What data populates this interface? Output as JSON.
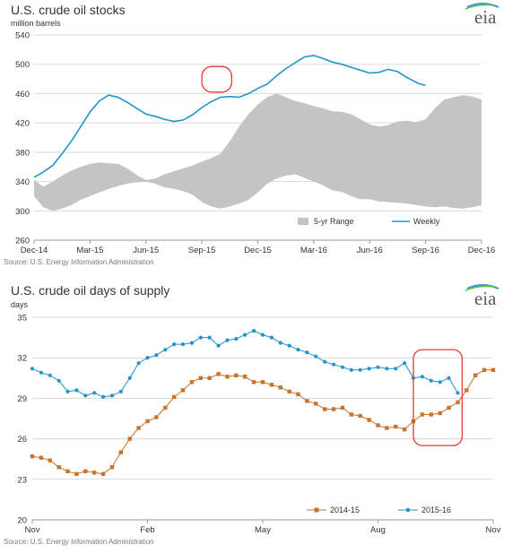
{
  "chart_data": [
    {
      "type": "line",
      "title": "U.S. crude oil stocks",
      "ylabel": "million barrels",
      "ylim": [
        260,
        540
      ],
      "y_ticks": [
        260,
        300,
        340,
        380,
        420,
        460,
        500,
        540
      ],
      "x_tick_labels": [
        "Dec-14",
        "Mar-15",
        "Jun-15",
        "Sep-15",
        "Dec-15",
        "Mar-16",
        "Jun-16",
        "Sep-16",
        "Dec-16"
      ],
      "x_domain": [
        0,
        24
      ],
      "grid": true,
      "legend_position": "bottom-right",
      "source": "Source: U.S. Energy Information Administration",
      "logo_text": "eia",
      "colors": {
        "range": "#c4c4c4",
        "weekly": "#1f95c9",
        "highlight": "#e53935"
      },
      "highlight_range": [
        9.0,
        10.6
      ],
      "series": [
        {
          "name": "5-yr Range",
          "kind": "band",
          "x": [
            0,
            0.5,
            1,
            1.5,
            2,
            2.5,
            3,
            3.5,
            4,
            4.5,
            5,
            5.5,
            6,
            6.5,
            7,
            7.5,
            8,
            8.5,
            9,
            9.5,
            10,
            10.5,
            11,
            11.5,
            12,
            12.5,
            13,
            13.5,
            14,
            14.5,
            15,
            15.5,
            16,
            16.5,
            17,
            17.5,
            18,
            18.5,
            19,
            19.5,
            20,
            20.5,
            21,
            21.5,
            22,
            22.5,
            23,
            23.5,
            24
          ],
          "high": [
            342,
            333,
            340,
            348,
            355,
            360,
            364,
            366,
            365,
            364,
            358,
            349,
            342,
            344,
            350,
            354,
            358,
            362,
            367,
            372,
            378,
            395,
            415,
            432,
            445,
            455,
            460,
            455,
            450,
            447,
            443,
            440,
            436,
            435,
            432,
            425,
            418,
            415,
            417,
            422,
            423,
            421,
            425,
            440,
            452,
            455,
            458,
            456,
            452
          ],
          "low": [
            320,
            305,
            300,
            303,
            308,
            315,
            320,
            325,
            330,
            334,
            337,
            339,
            340,
            337,
            332,
            330,
            327,
            322,
            312,
            306,
            303,
            306,
            310,
            315,
            325,
            337,
            344,
            348,
            350,
            345,
            340,
            335,
            328,
            326,
            320,
            316,
            316,
            313,
            312,
            311,
            310,
            308,
            306,
            305,
            306,
            304,
            303,
            305,
            308
          ]
        },
        {
          "name": "Weekly",
          "kind": "line",
          "x": [
            0,
            0.3,
            0.6,
            1,
            1.5,
            2,
            2.5,
            3,
            3.5,
            4,
            4.5,
            5,
            5.5,
            6,
            6.5,
            7,
            7.5,
            8,
            8.5,
            9,
            9.5,
            10,
            10.5,
            11,
            11.5,
            12,
            12.5,
            13,
            13.5,
            14,
            14.5,
            15,
            15.5,
            16,
            16.5,
            17,
            17.5,
            18,
            18.5,
            19,
            19.5,
            20,
            20.3,
            20.6,
            21
          ],
          "y": [
            346,
            350,
            355,
            362,
            378,
            395,
            415,
            435,
            450,
            458,
            455,
            448,
            440,
            432,
            429,
            425,
            422,
            424,
            431,
            441,
            449,
            455,
            456,
            455,
            460,
            467,
            473,
            484,
            494,
            502,
            510,
            512,
            508,
            503,
            500,
            496,
            492,
            488,
            489,
            493,
            490,
            482,
            478,
            474,
            471
          ]
        }
      ]
    },
    {
      "type": "line",
      "title": "U.S. crude oil days of supply",
      "ylabel": "days",
      "ylim": [
        20,
        35
      ],
      "y_ticks": [
        20,
        23,
        26,
        29,
        32,
        35
      ],
      "x_tick_labels": [
        "Nov",
        "Feb",
        "May",
        "Aug",
        "Nov"
      ],
      "x_domain": [
        0,
        52
      ],
      "grid": true,
      "legend_position": "bottom-right",
      "source": "Source: U.S. Energy Information Administration",
      "logo_text": "eia",
      "colors": {
        "s1": "#c8742a",
        "s2": "#1f95c9",
        "highlight": "#e53935"
      },
      "highlight_range": [
        43,
        48.5
      ],
      "series": [
        {
          "name": "2014-15",
          "x": [
            0,
            1,
            2,
            3,
            4,
            5,
            6,
            7,
            8,
            9,
            10,
            11,
            12,
            13,
            14,
            15,
            16,
            17,
            18,
            19,
            20,
            21,
            22,
            23,
            24,
            25,
            26,
            27,
            28,
            29,
            30,
            31,
            32,
            33,
            34,
            35,
            36,
            37,
            38,
            39,
            40,
            41,
            42,
            43,
            44,
            45,
            46,
            47,
            48,
            49,
            50,
            51,
            52
          ],
          "y": [
            24.7,
            24.6,
            24.4,
            23.9,
            23.6,
            23.4,
            23.6,
            23.5,
            23.4,
            23.9,
            25.0,
            26.0,
            26.8,
            27.3,
            27.6,
            28.3,
            29.1,
            29.6,
            30.2,
            30.5,
            30.5,
            30.8,
            30.6,
            30.7,
            30.6,
            30.2,
            30.2,
            30.0,
            29.8,
            29.5,
            29.3,
            28.8,
            28.6,
            28.2,
            28.2,
            28.3,
            27.8,
            27.7,
            27.4,
            27.0,
            26.8,
            26.9,
            26.7,
            27.3,
            27.8,
            27.8,
            27.9,
            28.3,
            28.7,
            29.6,
            30.7,
            31.1,
            31.1
          ]
        },
        {
          "name": "2015-16",
          "x": [
            0,
            1,
            2,
            3,
            4,
            5,
            6,
            7,
            8,
            9,
            10,
            11,
            12,
            13,
            14,
            15,
            16,
            17,
            18,
            19,
            20,
            21,
            22,
            23,
            24,
            25,
            26,
            27,
            28,
            29,
            30,
            31,
            32,
            33,
            34,
            35,
            36,
            37,
            38,
            39,
            40,
            41,
            42,
            43,
            44,
            45,
            46,
            47,
            48
          ],
          "y": [
            31.2,
            30.9,
            30.7,
            30.3,
            29.5,
            29.6,
            29.2,
            29.4,
            29.1,
            29.2,
            29.5,
            30.5,
            31.6,
            32.0,
            32.2,
            32.6,
            33.0,
            33.0,
            33.1,
            33.5,
            33.5,
            32.9,
            33.3,
            33.4,
            33.7,
            34.0,
            33.7,
            33.5,
            33.1,
            32.9,
            32.6,
            32.4,
            32.1,
            31.7,
            31.5,
            31.3,
            31.1,
            31.1,
            31.2,
            31.3,
            31.2,
            31.2,
            31.6,
            30.5,
            30.6,
            30.3,
            30.2,
            30.5,
            29.4
          ]
        }
      ]
    }
  ]
}
